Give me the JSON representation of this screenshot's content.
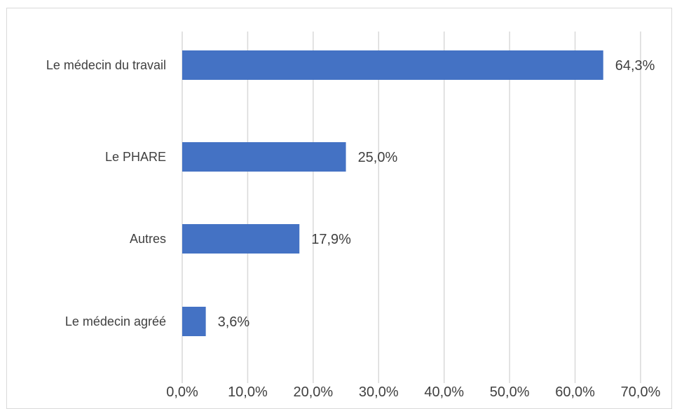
{
  "chart_data": {
    "type": "bar",
    "orientation": "horizontal",
    "categories": [
      "Le médecin du travail",
      "Le PHARE",
      "Autres",
      "Le médecin agréé"
    ],
    "values": [
      64.3,
      25.0,
      17.9,
      3.6
    ],
    "data_labels": [
      "64,3%",
      "25,0%",
      "17,9%",
      "3,6%"
    ],
    "x_ticks": [
      "0,0%",
      "10,0%",
      "20,0%",
      "30,0%",
      "40,0%",
      "50,0%",
      "60,0%",
      "70,0%"
    ],
    "xlim": [
      0,
      70
    ],
    "title": "",
    "xlabel": "",
    "ylabel": "",
    "grid": "vertical",
    "bar_color": "#4472c4"
  }
}
